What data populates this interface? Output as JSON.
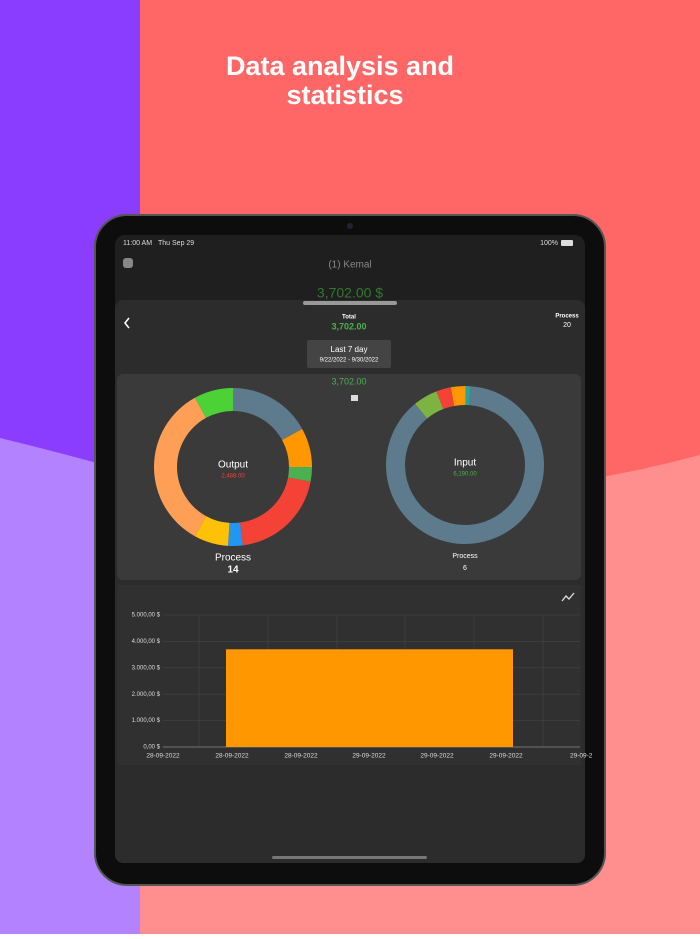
{
  "header": {
    "title_lines": [
      "Data analysis and",
      "statistics"
    ]
  },
  "status_bar": {
    "time": "11:00 AM",
    "date": "Thu Sep 29",
    "battery": "100%"
  },
  "app": {
    "account": "(1) Kemal",
    "balance": "3,702.00 $"
  },
  "sheet": {
    "total_label": "Total",
    "total": "3,702.00",
    "process_label": "Process",
    "process_count": 20,
    "period": "Last 7 day",
    "date_range": "9/22/2022 - 9/30/2022",
    "net": "3,702.00"
  },
  "chart_data": [
    {
      "type": "pie",
      "title": "Output",
      "subtitle": "2,488.00",
      "footer_label": "Process",
      "footer_value": 14,
      "values": [
        17,
        8,
        3,
        20,
        3,
        7,
        34,
        8
      ],
      "colors": [
        "#5d7b8c",
        "#ff9800",
        "#4caf50",
        "#f44336",
        "#2196f3",
        "#ffc107",
        "#ff9f55",
        "#4cd137"
      ]
    },
    {
      "type": "pie",
      "title": "Input",
      "subtitle": "6,190.00",
      "footer_label": "Process",
      "footer_value": 6,
      "values": [
        88,
        5,
        3,
        3,
        1
      ],
      "colors": [
        "#5d7b8c",
        "#7cb342",
        "#f44336",
        "#ff9800",
        "#26a69a"
      ]
    },
    {
      "type": "bar",
      "values": [
        3702
      ],
      "color": "#ff9800",
      "ylim": [
        0,
        5000
      ],
      "yticks": [
        {
          "value": 0,
          "label": "0,00 $"
        },
        {
          "value": 1000,
          "label": "1.000,00 $"
        },
        {
          "value": 2000,
          "label": "2.000,00 $"
        },
        {
          "value": 3000,
          "label": "3.000,00 $"
        },
        {
          "value": 4000,
          "label": "4.000,00 $"
        },
        {
          "value": 5000,
          "label": "5.000,00 $"
        }
      ],
      "xtick_labels": [
        "28-09-2022",
        "28-09-2022",
        "28-09-2022",
        "29-09-2022",
        "29-09-2022",
        "29-09-2022",
        "29-09-2"
      ],
      "grid": true
    }
  ]
}
